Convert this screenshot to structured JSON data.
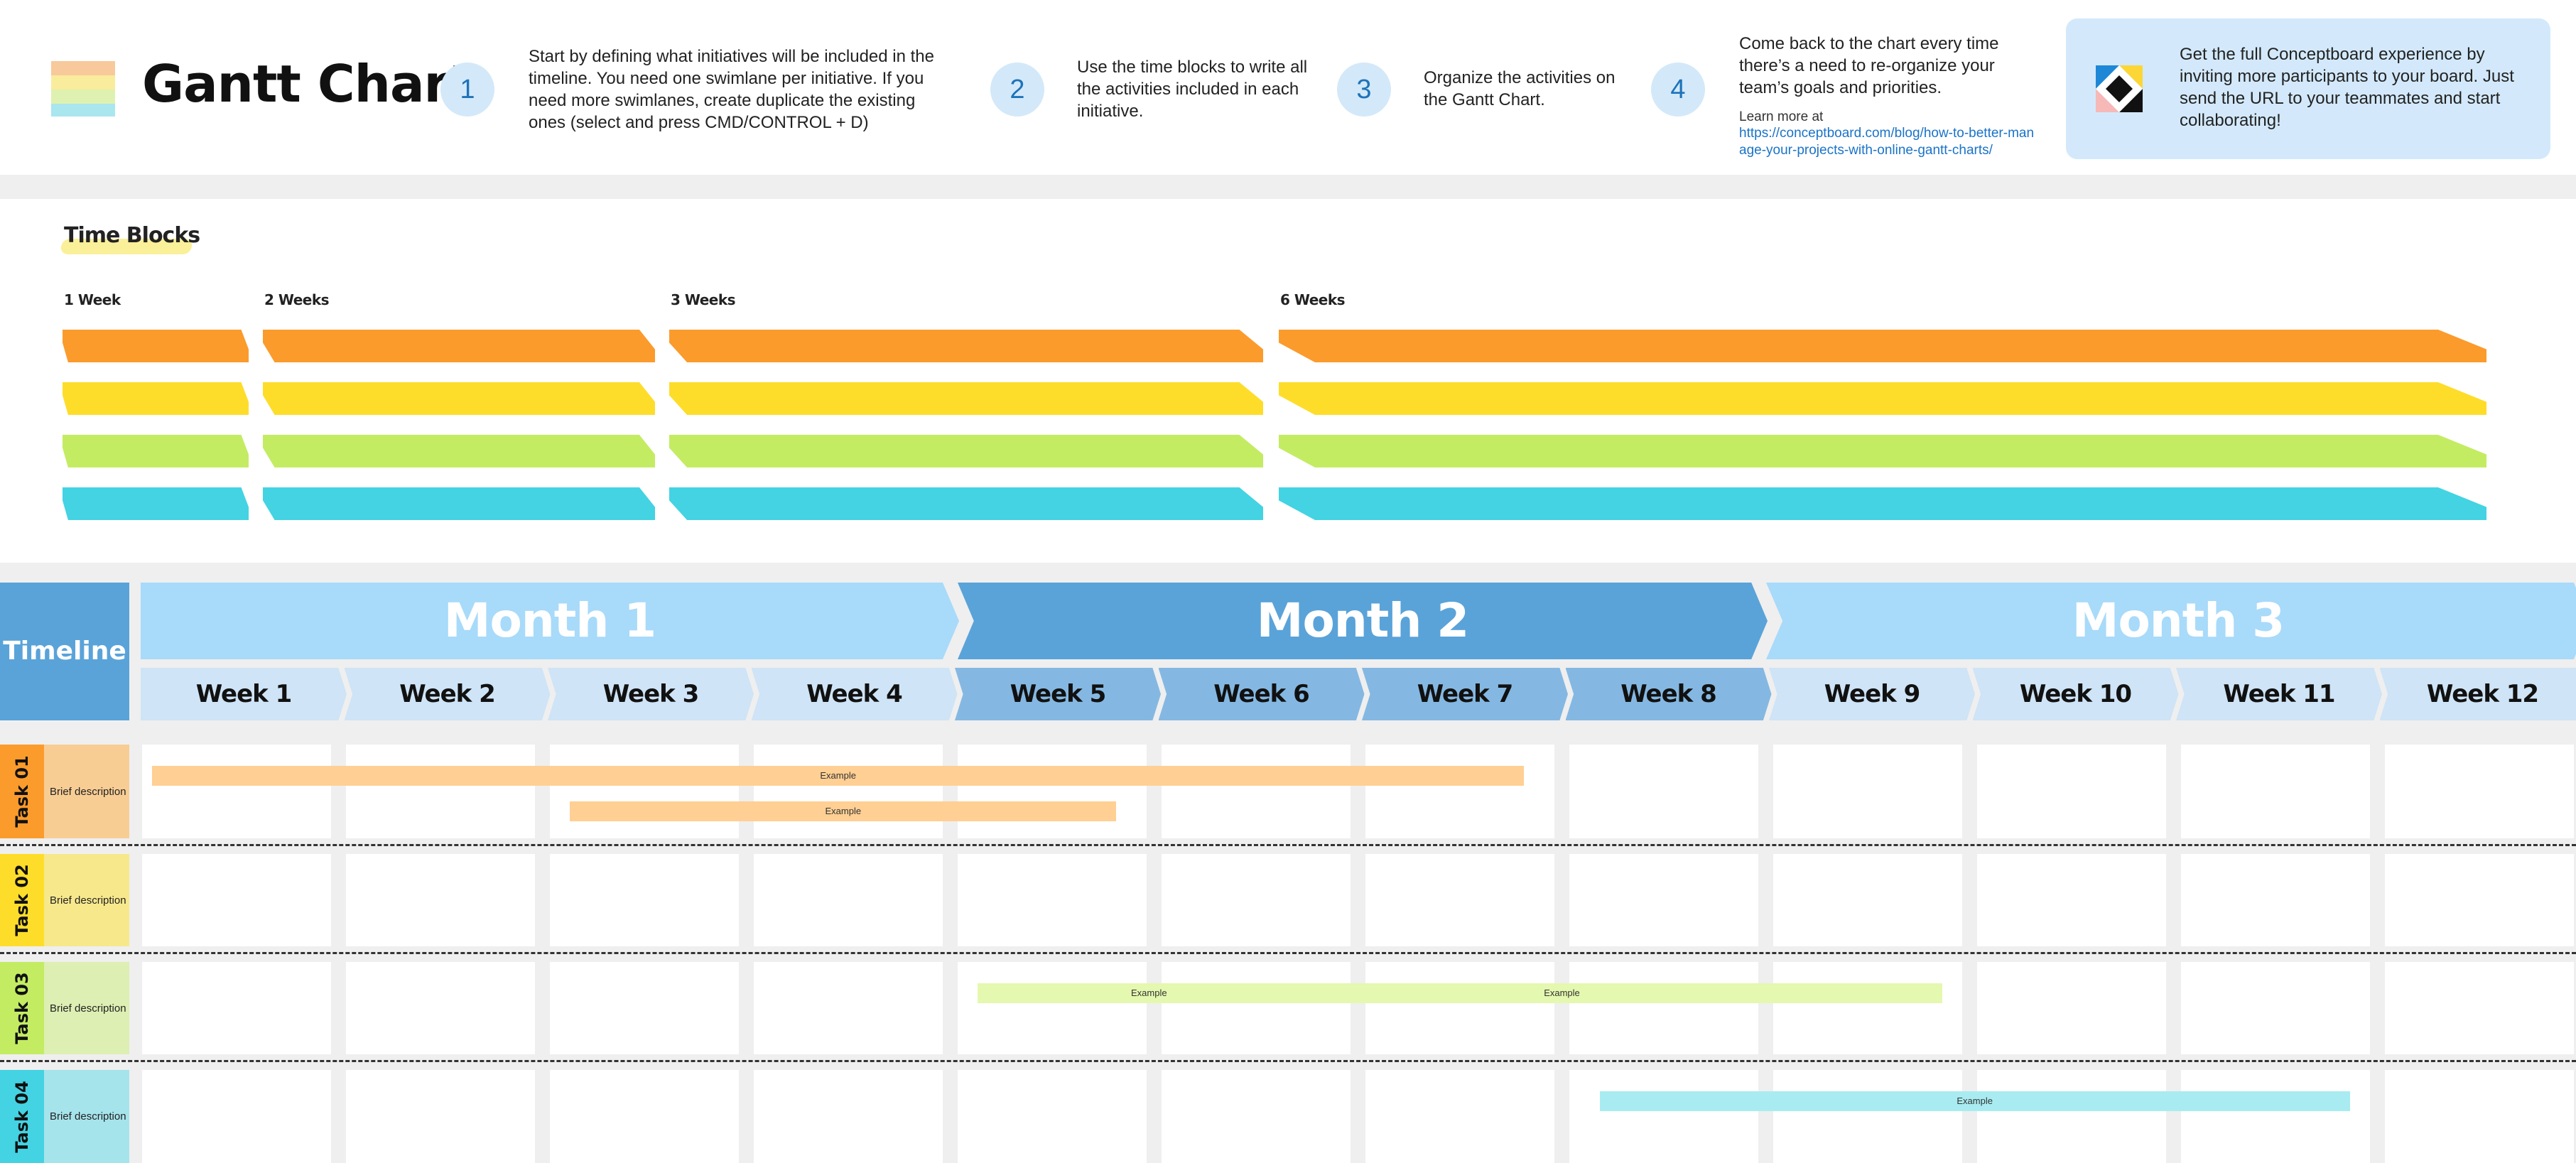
{
  "header": {
    "title": "Gantt Chart",
    "steps": [
      {
        "num": "1",
        "text": "Start by defining what initiatives will be included in the timeline. You need one swimlane per initiative. If you need more swimlanes, create duplicate the existing ones (select and press CMD/CONTROL + D)"
      },
      {
        "num": "2",
        "text": "Use the time blocks to write all the activities included in each initiative."
      },
      {
        "num": "3",
        "text": "Organize the activities on the Gantt Chart."
      },
      {
        "num": "4",
        "text": "Come back to the chart every time there’s a need to re-organize your team’s goals and priorities."
      }
    ],
    "learn_more": "Learn more at",
    "learn_url": "https://conceptboard.com/blog/how-to-better-manage-your-projects-with-online-gantt-charts/",
    "promo": "Get the full Conceptboard experience by inviting more participants to your board. Just send the URL to your teammates and start collaborating!"
  },
  "time_blocks": {
    "title": "Time Blocks",
    "labels": [
      "1 Week",
      "2 Weeks",
      "3 Weeks",
      "6 Weeks"
    ],
    "colors": [
      "#fb9b2c",
      "#fedd2a",
      "#c3ec63",
      "#43d3e3"
    ]
  },
  "timeline": {
    "label": "Timeline",
    "months": [
      {
        "label": "Month 1",
        "color": "#a8dafa"
      },
      {
        "label": "Month 2",
        "color": "#5aa3d9"
      },
      {
        "label": "Month 3",
        "color": "#a8dafa"
      }
    ],
    "weeks": [
      "Week 1",
      "Week 2",
      "Week 3",
      "Week 4",
      "Week 5",
      "Week 6",
      "Week 7",
      "Week 8",
      "Week 9",
      "Week 10",
      "Week 11",
      "Week 12"
    ],
    "week_colors": [
      "#cfe4f6",
      "#cfe4f6",
      "#cfe4f6",
      "#cfe4f6",
      "#84b8e2",
      "#84b8e2",
      "#84b8e2",
      "#84b8e2",
      "#cfe4f6",
      "#cfe4f6",
      "#cfe4f6",
      "#cfe4f6"
    ]
  },
  "tasks": [
    {
      "label": "Task 01",
      "desc": "Brief description",
      "tab_color": "#fb9b2c",
      "desc_color": "#f8cd94",
      "bars": [
        {
          "start_week": 1,
          "end_week": 6.9,
          "label": "Example",
          "row": 0,
          "color": "#ffcf93"
        },
        {
          "start_week": 3.05,
          "end_week": 4.9,
          "label": "Example",
          "row": 1,
          "color": "#ffcf93"
        }
      ]
    },
    {
      "label": "Task 02",
      "desc": "Brief description",
      "tab_color": "#fedd2a",
      "desc_color": "#f7e88c",
      "bars": []
    },
    {
      "label": "Task 03",
      "desc": "Brief description",
      "tab_color": "#c3ec63",
      "desc_color": "#ddefb2",
      "bars": [
        {
          "start_week": 5.05,
          "end_week": 5.9,
          "label": "Example",
          "row": 0,
          "color": "#e4f8af"
        },
        {
          "start_week": 6.05,
          "end_week": 8.95,
          "label": "Example",
          "row": 0,
          "color": "#e4f8af"
        }
      ]
    },
    {
      "label": "Task 04",
      "desc": "Brief description",
      "tab_color": "#43d3e3",
      "desc_color": "#a6e4ec",
      "bars": [
        {
          "start_week": 8.1,
          "end_week": 10.95,
          "label": "Example",
          "row": 0,
          "color": "#a8ecf1"
        }
      ]
    }
  ]
}
